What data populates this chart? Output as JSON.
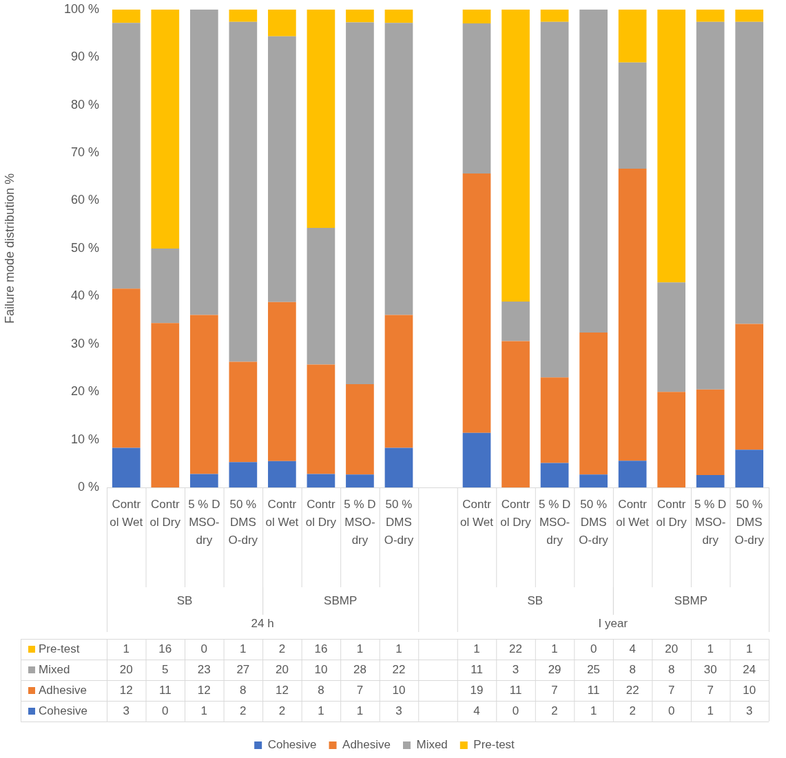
{
  "chart_data": [
    {
      "type": "bar",
      "stacked": true,
      "ylabel": "Failure mode distribution %",
      "categories": [
        "Control Wet",
        "Control Dry",
        "5 % DMSO-dry",
        "50 % DMSO-dry",
        "Control Wet",
        "Control Dry",
        "5 % DMSO-dry",
        "50 % DMSO-dry",
        null,
        "Control Wet",
        "Control Dry",
        "5 % DMSO-dry",
        "50 % DMSO-dry",
        "Control Wet",
        "Control Dry",
        "5 % DMSO-dry",
        "50 % DMSO-dry"
      ],
      "series": [
        {
          "name": "Cohesive",
          "color": "#4472c4",
          "values": [
            8.3,
            0,
            2.8,
            5.3,
            5.5,
            2.8,
            2.7,
            8.3,
            null,
            11.4,
            0,
            5.1,
            2.7,
            5.6,
            0,
            2.6,
            7.9
          ]
        },
        {
          "name": "Adhesive",
          "color": "#ed7d31",
          "values": [
            33.3,
            34.4,
            33.3,
            21.0,
            33.3,
            22.9,
            18.9,
            27.8,
            null,
            54.3,
            30.6,
            17.9,
            29.7,
            61.1,
            20,
            17.9,
            26.3
          ]
        },
        {
          "name": "Mixed",
          "color": "#a5a5a5",
          "values": [
            55.6,
            15.6,
            63.9,
            71.1,
            55.6,
            28.6,
            75.7,
            61.1,
            null,
            31.4,
            8.3,
            74.4,
            67.6,
            22.2,
            22.9,
            76.9,
            63.2
          ]
        },
        {
          "name": "Pre-test",
          "color": "#ffc000",
          "values": [
            2.8,
            50,
            0,
            2.6,
            5.6,
            45.7,
            2.7,
            2.8,
            null,
            2.9,
            61.1,
            2.6,
            0,
            11.1,
            57.1,
            2.6,
            2.6
          ]
        }
      ],
      "ylim": [
        0,
        100
      ],
      "yticks": [
        {
          "value": 0,
          "label": "0 %"
        },
        {
          "value": 10,
          "label": "10 %"
        },
        {
          "value": 20,
          "label": "20 %"
        },
        {
          "value": 30,
          "label": "30 %"
        },
        {
          "value": 40,
          "label": "40 %"
        },
        {
          "value": 50,
          "label": "50 %"
        },
        {
          "value": 60,
          "label": "60 %"
        },
        {
          "value": 70,
          "label": "70 %"
        },
        {
          "value": 80,
          "label": "80 %"
        },
        {
          "value": 90,
          "label": "90 %"
        },
        {
          "value": 100,
          "label": "100 %"
        }
      ],
      "annotations": [
        "SB",
        "SBMP",
        "SB",
        "SBMP",
        "24 h",
        "I year"
      ],
      "legend": "bottom"
    },
    {
      "type": "heatmap",
      "data_labels": true,
      "tick_labels": "y",
      "categories": [
        null,
        null,
        null,
        null,
        null,
        null,
        null,
        null,
        null,
        null,
        null,
        null,
        null,
        null,
        null,
        null,
        null
      ],
      "y_categories": [
        "Pre-test",
        "Mixed",
        "Adhesive",
        "Cohesive"
      ],
      "cells": [
        [
          1,
          16,
          0,
          1,
          2,
          16,
          1,
          1,
          null,
          1,
          22,
          1,
          0,
          4,
          20,
          1,
          1
        ],
        [
          20,
          5,
          23,
          27,
          20,
          10,
          28,
          22,
          null,
          11,
          3,
          29,
          25,
          8,
          8,
          30,
          24
        ],
        [
          12,
          11,
          12,
          8,
          12,
          8,
          7,
          10,
          null,
          19,
          11,
          7,
          11,
          22,
          7,
          7,
          10
        ],
        [
          3,
          0,
          1,
          2,
          2,
          1,
          1,
          3,
          null,
          4,
          0,
          2,
          1,
          2,
          0,
          1,
          3
        ]
      ]
    }
  ]
}
